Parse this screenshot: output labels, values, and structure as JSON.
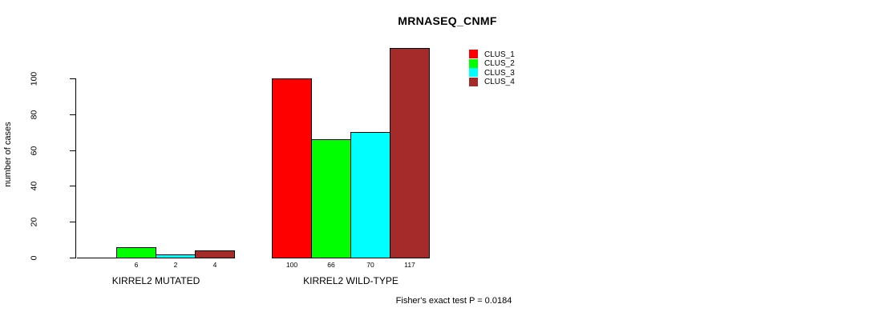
{
  "chart_data": {
    "type": "bar",
    "title": "MRNASEQ_CNMF",
    "ylabel": "number of cases",
    "xlabel": "",
    "categories": [
      "KIRREL2 MUTATED",
      "KIRREL2 WILD-TYPE"
    ],
    "series": [
      {
        "name": "CLUS_1",
        "color": "#FF0000",
        "values": [
          0,
          100
        ]
      },
      {
        "name": "CLUS_2",
        "color": "#00FF00",
        "values": [
          6,
          66
        ]
      },
      {
        "name": "CLUS_3",
        "color": "#00FFFF",
        "values": [
          2,
          70
        ]
      },
      {
        "name": "CLUS_4",
        "color": "#A52A2A",
        "values": [
          4,
          117
        ]
      }
    ],
    "bar_value_labels": [
      [
        "",
        "6",
        "2",
        "4"
      ],
      [
        "100",
        "66",
        "70",
        "117"
      ]
    ],
    "ylim": [
      0,
      100
    ],
    "yticks": [
      0,
      20,
      40,
      60,
      80,
      100
    ],
    "grid": false,
    "legend_position": "top-right",
    "annotation": "Fisher's exact test P = 0.0184"
  },
  "colors": {
    "background": "#FFFFFF",
    "axis": "#000000",
    "text": "#000000",
    "clus_1": "#FF0000",
    "clus_2": "#00FF00",
    "clus_3": "#00FFFF",
    "clus_4": "#A52A2A"
  }
}
